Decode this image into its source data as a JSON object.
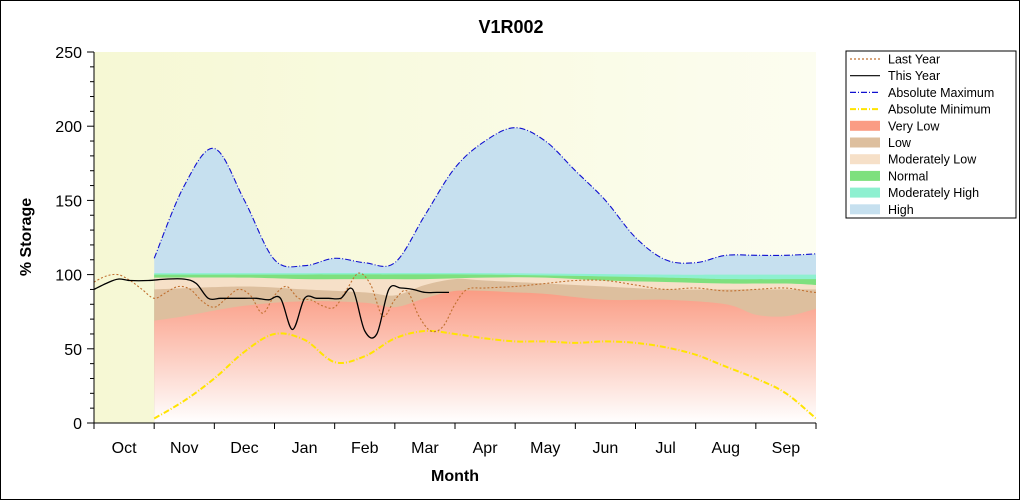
{
  "chart_data": {
    "type": "area",
    "title": "V1R002",
    "xlabel": "Month",
    "ylabel": "% Storage",
    "xlim": [
      0,
      12
    ],
    "ylim": [
      0,
      250
    ],
    "yticks": [
      0,
      50,
      100,
      150,
      200,
      250
    ],
    "categories": [
      "Oct",
      "Nov",
      "Dec",
      "Jan",
      "Feb",
      "Mar",
      "Apr",
      "May",
      "Jun",
      "Jul",
      "Aug",
      "Sep"
    ],
    "grid": false,
    "legend_position": "right",
    "bands": [
      {
        "name": "High",
        "color": "#c6e0ef",
        "edge": "#2424c8",
        "x": [
          0.5,
          1.0,
          1.5,
          2.0,
          2.5,
          3.0,
          3.5,
          4.0,
          4.5,
          5.0,
          5.5,
          6.0,
          6.5,
          7.0,
          7.5,
          8.0,
          8.5,
          9.0,
          9.5,
          10.0,
          10.5,
          11.0,
          11.5
        ],
        "values": [
          111,
          160,
          185,
          150,
          110,
          106,
          111,
          108,
          108,
          140,
          172,
          190,
          199,
          190,
          170,
          150,
          125,
          110,
          108,
          113,
          113,
          113,
          114
        ]
      },
      {
        "name": "Moderately High",
        "color": "#8ef0d0",
        "x": [
          0.5,
          3.0,
          6.0,
          9.0,
          10.0,
          11.5
        ],
        "values": [
          101,
          101,
          101,
          100,
          100,
          100
        ]
      },
      {
        "name": "Normal",
        "color": "#7ee07e",
        "x": [
          0.5,
          3.0,
          6.0,
          9.0,
          10.0,
          11.5
        ],
        "values": [
          100,
          100,
          100,
          98,
          97,
          97
        ]
      },
      {
        "name": "Moderately Low",
        "color": "#f6e0c8",
        "x": [
          0.5,
          2.0,
          3.0,
          4.0,
          5.0,
          6.0,
          7.0,
          8.0,
          9.0,
          10.0,
          11.0,
          11.5
        ],
        "values": [
          98,
          98,
          97,
          97,
          97,
          98,
          98,
          96,
          95,
          94,
          94,
          93
        ]
      },
      {
        "name": "Low",
        "color": "#ddbf9e",
        "x": [
          0.5,
          2.0,
          3.0,
          4.0,
          4.5,
          5.0,
          5.5,
          6.0,
          7.0,
          8.0,
          9.0,
          10.0,
          11.0,
          11.5
        ],
        "values": [
          90,
          92,
          90,
          88,
          86,
          93,
          97,
          96,
          94,
          92,
          90,
          90,
          90,
          90
        ]
      },
      {
        "name": "Very Low",
        "color": "#fa9c84",
        "x": [
          0.5,
          1.0,
          2.0,
          3.0,
          4.0,
          4.5,
          5.0,
          5.5,
          6.0,
          6.5,
          7.0,
          8.0,
          9.0,
          10.0,
          10.5,
          11.0,
          11.5
        ],
        "values": [
          69,
          72,
          79,
          82,
          81,
          78,
          84,
          89,
          89,
          88,
          87,
          83,
          83,
          80,
          73,
          72,
          77
        ]
      }
    ],
    "series": [
      {
        "name": "Last Year",
        "style": "dotted",
        "color": "#c07030",
        "x": [
          -0.5,
          -0.3,
          -0.1,
          0.1,
          0.3,
          0.5,
          0.7,
          0.9,
          1.1,
          1.3,
          1.5,
          1.7,
          1.9,
          2.1,
          2.3,
          2.5,
          2.7,
          2.9,
          3.1,
          3.3,
          3.5,
          3.7,
          3.9,
          4.1,
          4.3,
          4.5,
          4.7,
          4.9,
          5.1,
          5.3,
          5.5,
          5.7,
          6.0,
          6.5,
          7.0,
          7.5,
          8.0,
          8.5,
          9.0,
          9.5,
          10.0,
          10.5,
          11.0,
          11.5,
          11.8
        ],
        "values": [
          95,
          99,
          100,
          96,
          90,
          84,
          88,
          92,
          90,
          82,
          78,
          84,
          90,
          86,
          74,
          86,
          92,
          84,
          83,
          79,
          78,
          90,
          101,
          93,
          72,
          83,
          89,
          72,
          62,
          65,
          80,
          90,
          91,
          92,
          94,
          96,
          96,
          93,
          90,
          91,
          89,
          90,
          91,
          88,
          90
        ]
      },
      {
        "name": "This Year",
        "style": "solid",
        "color": "#000000",
        "x": [
          -0.5,
          -0.3,
          -0.1,
          0.1,
          0.4,
          0.7,
          1.0,
          1.2,
          1.4,
          1.6,
          1.8,
          2.0,
          2.2,
          2.4,
          2.6,
          2.8,
          3.0,
          3.2,
          3.4,
          3.6,
          3.8,
          4.0,
          4.2,
          4.4,
          4.6,
          4.8,
          5.0,
          5.2,
          5.4
        ],
        "values": [
          90,
          94,
          97,
          96,
          96,
          97,
          97,
          94,
          84,
          84,
          84,
          84,
          84,
          83,
          84,
          63,
          84,
          84,
          84,
          84,
          90,
          62,
          60,
          90,
          91,
          90,
          88,
          88,
          88
        ]
      },
      {
        "name": "Absolute Maximum",
        "style": "dashdot",
        "color": "#1010d0",
        "ref": "High"
      },
      {
        "name": "Absolute Minimum",
        "style": "dashdot",
        "color": "#ffe400",
        "x": [
          0.5,
          1.0,
          1.5,
          2.0,
          2.5,
          3.0,
          3.5,
          4.0,
          4.5,
          5.0,
          5.5,
          6.0,
          6.5,
          7.0,
          7.5,
          8.0,
          8.5,
          9.0,
          9.5,
          10.0,
          10.5,
          11.0,
          11.5
        ],
        "values": [
          3,
          15,
          30,
          48,
          60,
          56,
          41,
          45,
          57,
          62,
          60,
          57,
          55,
          55,
          54,
          55,
          54,
          51,
          46,
          38,
          30,
          20,
          3
        ]
      }
    ],
    "legend": [
      {
        "label": "Last Year",
        "kind": "line",
        "color": "#c07030",
        "style": "dotted"
      },
      {
        "label": "This Year",
        "kind": "line",
        "color": "#000000",
        "style": "solid"
      },
      {
        "label": "Absolute Maximum",
        "kind": "line",
        "color": "#1010d0",
        "style": "dashdot"
      },
      {
        "label": "Absolute Minimum",
        "kind": "line",
        "color": "#ffe400",
        "style": "dashdot"
      },
      {
        "label": "Very Low",
        "kind": "band",
        "color": "#fa9c84"
      },
      {
        "label": "Low",
        "kind": "band",
        "color": "#ddbf9e"
      },
      {
        "label": "Moderately Low",
        "kind": "band",
        "color": "#f6e0c8"
      },
      {
        "label": "Normal",
        "kind": "band",
        "color": "#7ee07e"
      },
      {
        "label": "Moderately High",
        "kind": "band",
        "color": "#8ef0d0"
      },
      {
        "label": "High",
        "kind": "band",
        "color": "#c6e0ef"
      }
    ],
    "colors": {
      "plot_background_left": "#f6f8d4",
      "plot_background_right": "#fcfdf0"
    }
  }
}
